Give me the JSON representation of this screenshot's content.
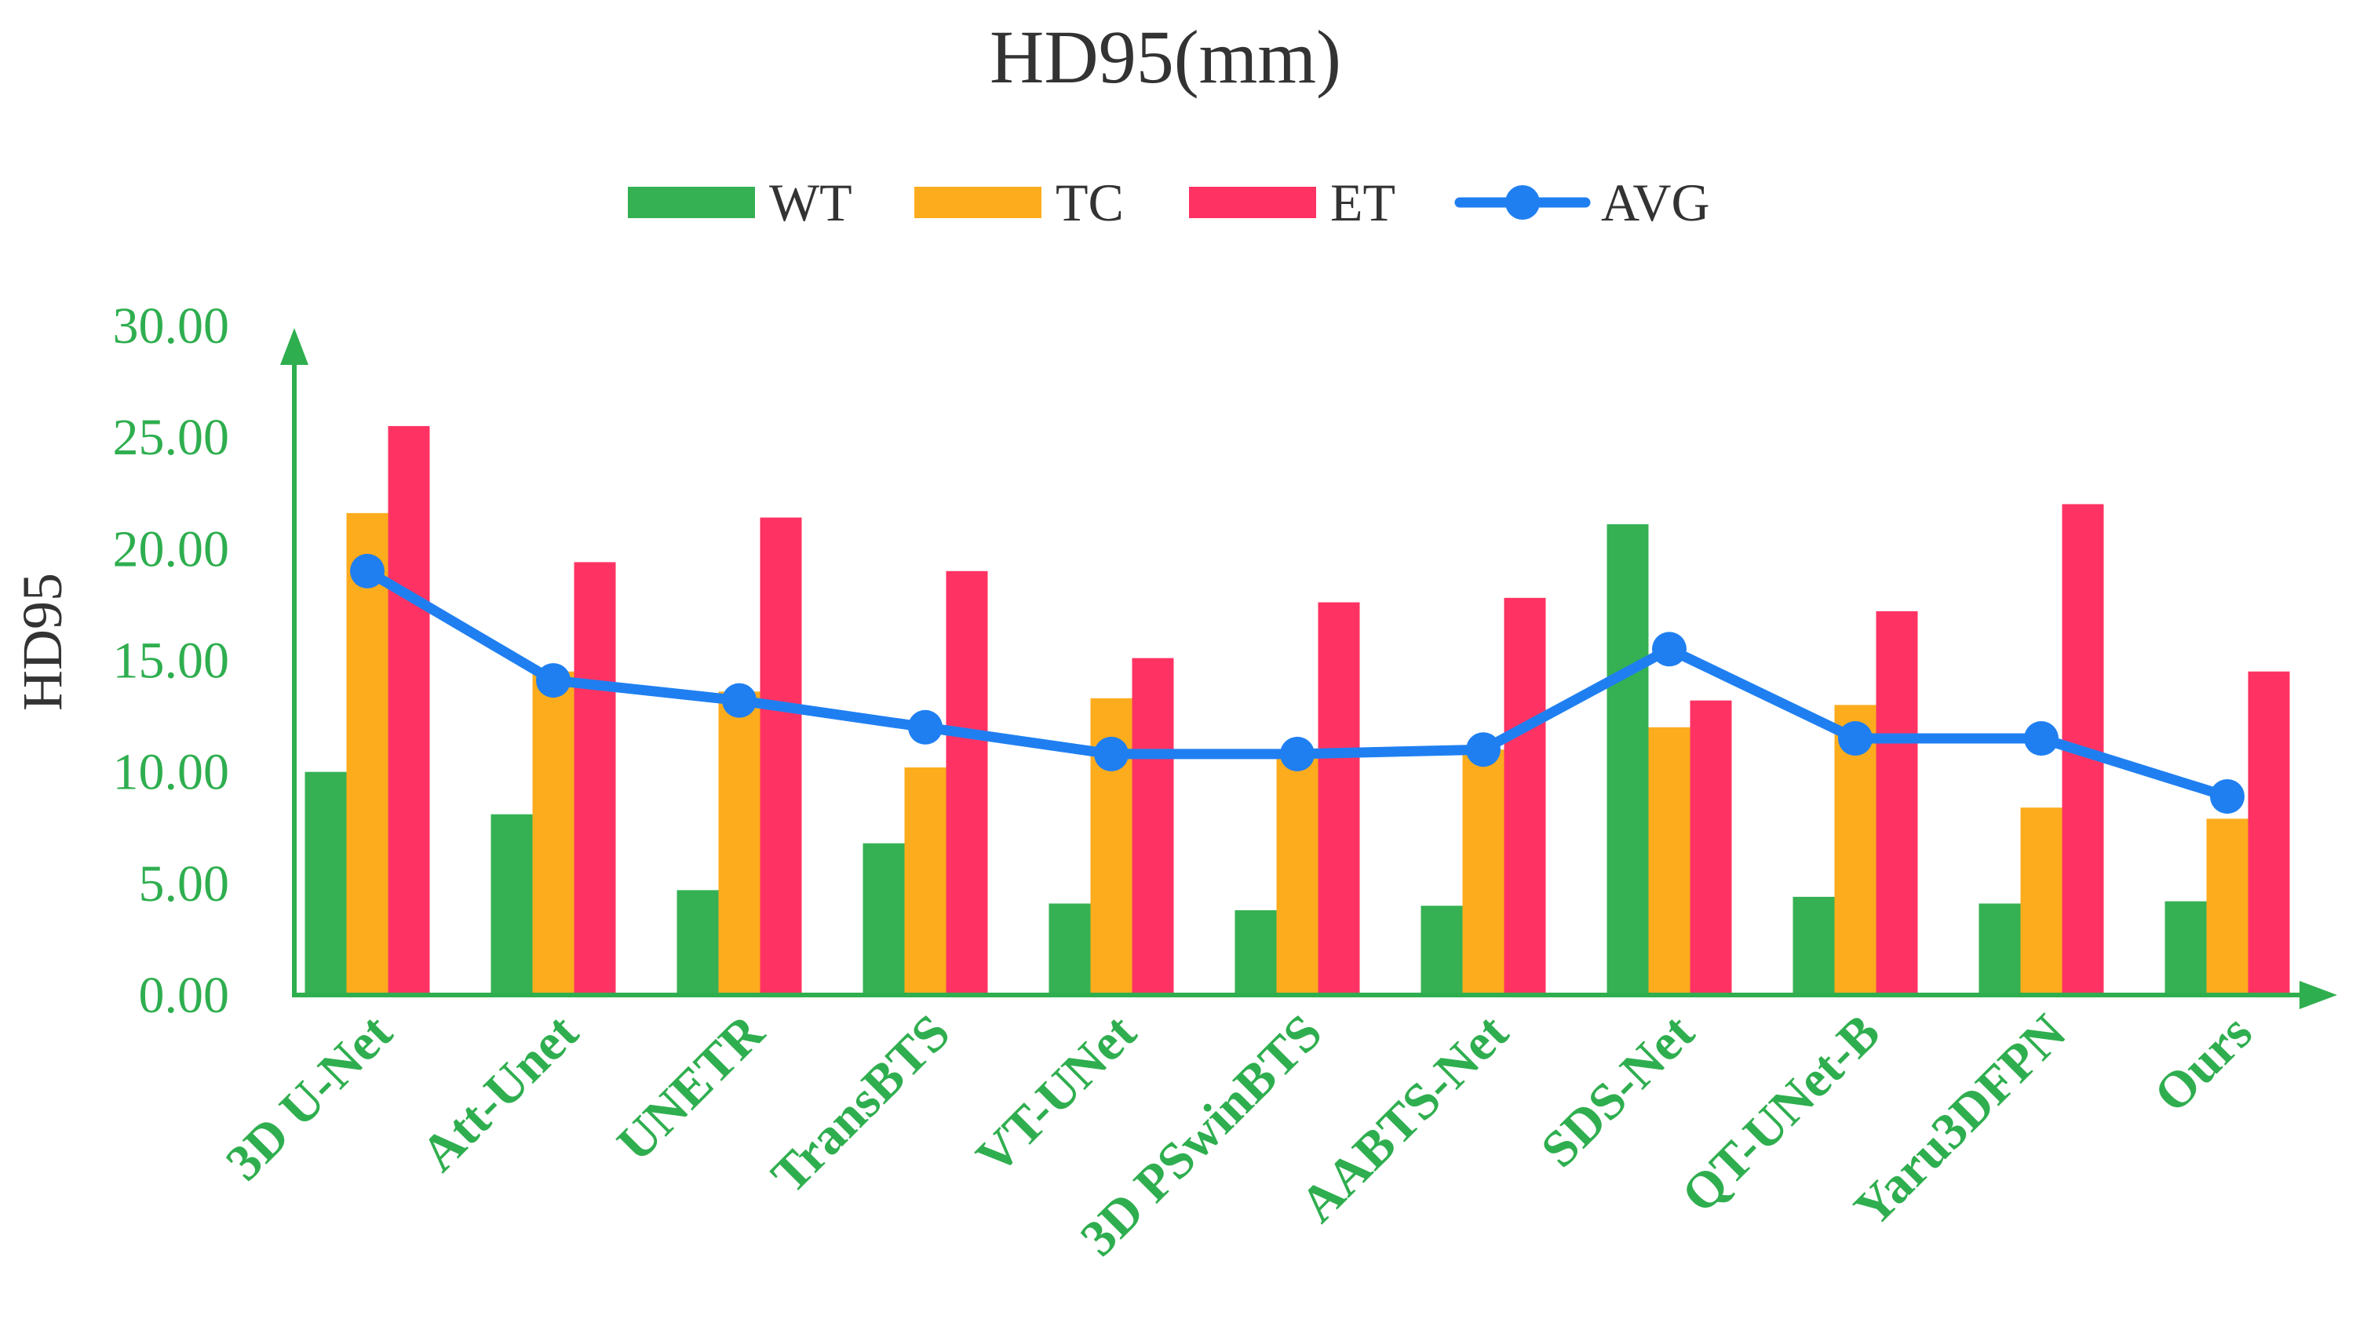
{
  "chart_data": {
    "type": "bar",
    "title": "HD95(mm)",
    "xlabel": "",
    "ylabel": "HD95",
    "ylim": [
      0,
      30
    ],
    "yticks": [
      "0.00",
      "5.00",
      "10.00",
      "15.00",
      "20.00",
      "25.00",
      "30.00"
    ],
    "categories": [
      "3D U-Net",
      "Att-Unet",
      "UNETR",
      "TransBTS",
      "VT-UNet",
      "3D PSwinBTS",
      "AABTS-Net",
      "SDS-Net",
      "QT-UNet-B",
      "Yaru3DFPN",
      "Ours"
    ],
    "series": [
      {
        "name": "WT",
        "type": "bar",
        "color": "#35b153",
        "values": [
          10.0,
          8.1,
          4.7,
          6.8,
          4.1,
          3.8,
          4.0,
          21.1,
          4.4,
          4.1,
          4.2
        ]
      },
      {
        "name": "TC",
        "type": "bar",
        "color": "#fdac1e",
        "values": [
          21.6,
          14.5,
          13.6,
          10.2,
          13.3,
          11.0,
          11.0,
          12.0,
          13.0,
          8.4,
          7.9
        ]
      },
      {
        "name": "ET",
        "type": "bar",
        "color": "#ff3363",
        "values": [
          25.5,
          19.4,
          21.4,
          19.0,
          15.1,
          17.6,
          17.8,
          13.2,
          17.2,
          22.0,
          14.5
        ]
      },
      {
        "name": "AVG",
        "type": "line",
        "color": "#1f7ff1",
        "values": [
          19.0,
          14.1,
          13.2,
          12.0,
          10.8,
          10.8,
          11.0,
          15.5,
          11.5,
          11.5,
          8.9
        ]
      }
    ],
    "legend_position": "top-center",
    "grid": false
  },
  "colors": {
    "axis": "#2fae4f",
    "tick_text": "#2fae4f",
    "title_text": "#333333"
  }
}
